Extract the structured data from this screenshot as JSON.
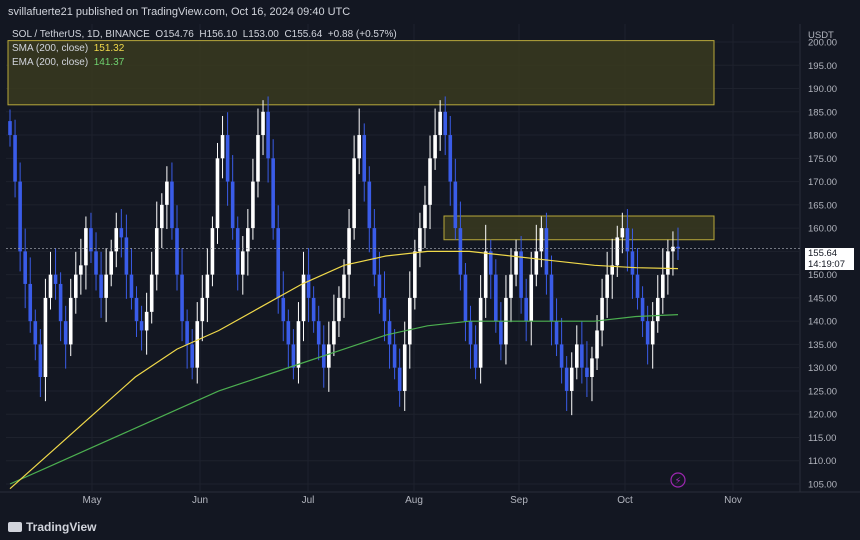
{
  "header": {
    "published": "svillafuerte21 published on TradingView.com, Oct 16, 2024 09:40 UTC"
  },
  "legend": {
    "symbol": "SOL / TetherUS, 1D, BINANCE",
    "open_label": "O",
    "open": "154.76",
    "high_label": "H",
    "high": "156.10",
    "low_label": "L",
    "low": "153.00",
    "close_label": "C",
    "close": "155.64",
    "change": "+0.88 (+0.57%)",
    "sma_label": "SMA (200, close)",
    "sma_value": "151.32",
    "ema_label": "EMA (200, close)",
    "ema_value": "141.37"
  },
  "price_tag": {
    "price": "155.64",
    "countdown": "14:19:07"
  },
  "footer": {
    "brand": "TradingView"
  },
  "colors": {
    "background": "#131722",
    "candle": "#ffffff",
    "candle_down": "#3a5ce8",
    "sma": "#f0d94a",
    "ema": "#4caf50",
    "zone_fill": "#3a3a1e",
    "zone_border": "#b8a83a",
    "axis_text": "#b2b5be"
  },
  "chart_data": {
    "type": "candlestick",
    "y_axis_labels": [
      "USDT",
      "200.00",
      "195.00",
      "190.00",
      "185.00",
      "180.00",
      "175.00",
      "170.00",
      "165.00",
      "160.00",
      "155.00",
      "150.00",
      "145.00",
      "140.00",
      "135.00",
      "130.00",
      "125.00",
      "120.00",
      "115.00",
      "110.00",
      "105.00"
    ],
    "x_axis_labels": [
      "May",
      "Jun",
      "Jul",
      "Aug",
      "Sep",
      "Oct",
      "Nov"
    ],
    "ylim": [
      102,
      202
    ],
    "resistance_zones": [
      {
        "low": 186.5,
        "high": 200.3
      },
      {
        "low": 157.5,
        "high": 162.6
      }
    ],
    "last_price_line": 155.64,
    "sma_200": [
      104,
      112,
      120,
      128,
      134,
      138,
      143,
      148,
      152,
      154,
      155,
      155,
      154,
      153,
      152,
      151.5,
      151.3
    ],
    "ema_200": [
      105,
      109,
      113,
      117,
      121,
      125,
      128,
      131,
      134,
      137,
      139,
      140,
      140,
      140,
      140,
      141,
      141.4
    ],
    "closes": [
      180,
      170,
      155,
      148,
      140,
      135,
      128,
      145,
      150,
      148,
      140,
      135,
      145,
      150,
      152,
      160,
      155,
      150,
      145,
      150,
      155,
      160,
      158,
      150,
      145,
      140,
      138,
      142,
      150,
      160,
      165,
      170,
      160,
      150,
      140,
      135,
      130,
      140,
      145,
      150,
      160,
      175,
      180,
      170,
      160,
      150,
      155,
      160,
      170,
      180,
      185,
      175,
      160,
      145,
      140,
      135,
      130,
      140,
      150,
      145,
      140,
      135,
      130,
      135,
      140,
      145,
      150,
      160,
      175,
      180,
      170,
      160,
      150,
      145,
      140,
      135,
      130,
      125,
      135,
      145,
      155,
      160,
      165,
      175,
      180,
      185,
      180,
      170,
      160,
      150,
      140,
      135,
      130,
      145,
      155,
      150,
      140,
      135,
      145,
      150,
      155,
      145,
      140,
      150,
      155,
      160,
      150,
      140,
      135,
      130,
      125,
      130,
      135,
      130,
      128,
      132,
      138,
      145,
      150,
      152,
      158,
      160,
      155,
      150,
      145,
      140,
      135,
      140,
      145,
      150,
      155,
      156,
      155.64
    ]
  }
}
